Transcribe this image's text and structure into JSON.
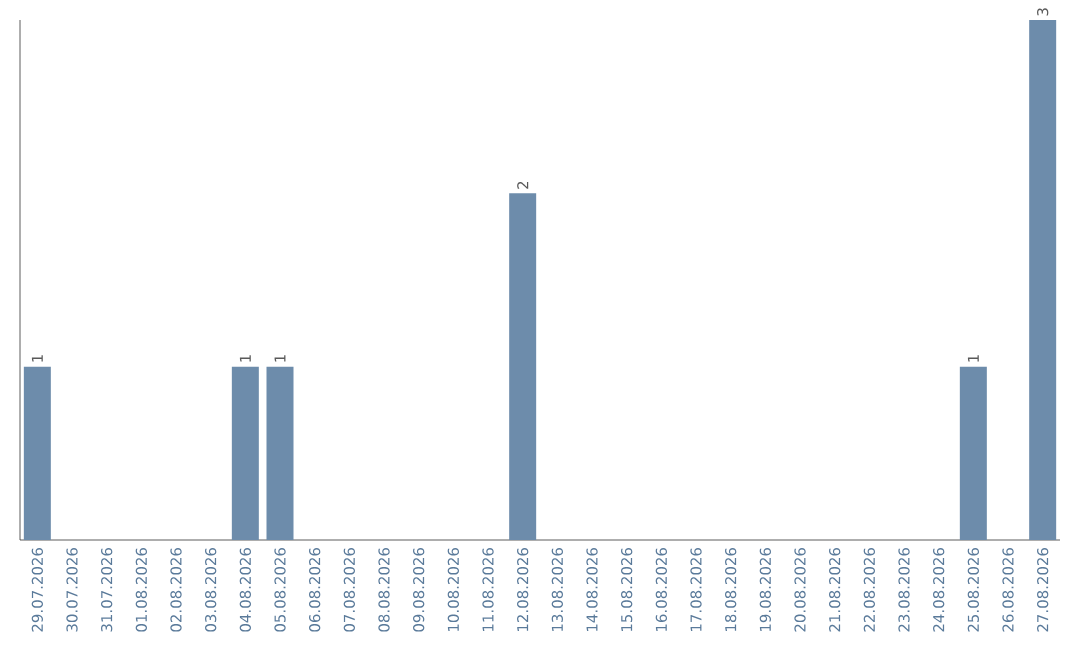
{
  "chart_data": {
    "type": "bar",
    "categories": [
      "29.07.2026",
      "30.07.2026",
      "31.07.2026",
      "01.08.2026",
      "02.08.2026",
      "03.08.2026",
      "04.08.2026",
      "05.08.2026",
      "06.08.2026",
      "07.08.2026",
      "08.08.2026",
      "09.08.2026",
      "10.08.2026",
      "11.08.2026",
      "12.08.2026",
      "13.08.2026",
      "14.08.2026",
      "15.08.2026",
      "16.08.2026",
      "17.08.2026",
      "18.08.2026",
      "19.08.2026",
      "20.08.2026",
      "21.08.2026",
      "22.08.2026",
      "23.08.2026",
      "24.08.2026",
      "25.08.2026",
      "26.08.2026",
      "27.08.2026"
    ],
    "values": [
      1,
      0,
      0,
      0,
      0,
      0,
      1,
      1,
      0,
      0,
      0,
      0,
      0,
      0,
      2,
      0,
      0,
      0,
      0,
      0,
      0,
      0,
      0,
      0,
      0,
      0,
      0,
      1,
      0,
      3
    ],
    "value_labels": [
      "1",
      null,
      null,
      null,
      null,
      null,
      "1",
      "1",
      null,
      null,
      null,
      null,
      null,
      null,
      "2",
      null,
      null,
      null,
      null,
      null,
      null,
      null,
      null,
      null,
      null,
      null,
      null,
      "1",
      null,
      "3"
    ],
    "color": "#6d8cab",
    "ylim": [
      0,
      3
    ],
    "tick_labels": "x"
  }
}
